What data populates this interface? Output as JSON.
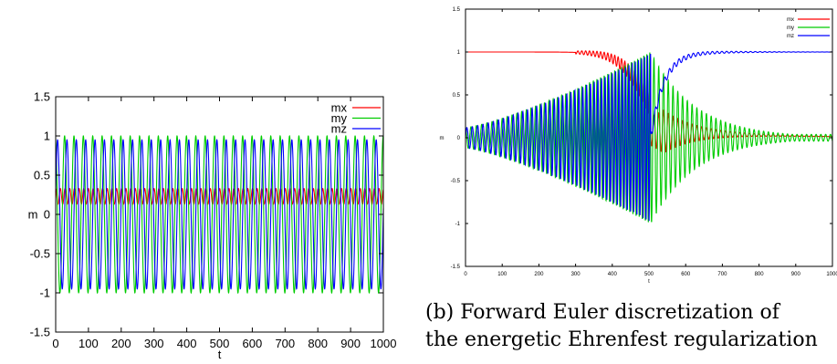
{
  "chart_data": [
    {
      "type": "line",
      "title": "",
      "xlabel": "t",
      "ylabel": "m",
      "xlim": [
        0,
        1000
      ],
      "ylim": [
        -1.5,
        1.5
      ],
      "xticks": [
        "0",
        "100",
        "200",
        "300",
        "400",
        "500",
        "600",
        "700",
        "800",
        "900",
        "1000"
      ],
      "yticks": [
        "-1.5",
        "-1",
        "-0.5",
        "0",
        "0.5",
        "1",
        "1.5"
      ],
      "legend_position": "top-right",
      "grid": false,
      "series": [
        {
          "name": "mx",
          "color": "#ff0000",
          "description_values": {
            "min": 0.13,
            "max": 0.33,
            "oscillation_period": 14.3
          }
        },
        {
          "name": "my",
          "color": "#00cc00",
          "description_values": {
            "min": -1.0,
            "max": 1.0,
            "oscillation_period": 28.6
          }
        },
        {
          "name": "mz",
          "color": "#0000ff",
          "description_values": {
            "min": -0.95,
            "max": 0.95,
            "oscillation_period": 28.6
          }
        }
      ]
    },
    {
      "type": "line",
      "title": "",
      "xlabel": "t",
      "ylabel": "m",
      "xlim": [
        0,
        1000
      ],
      "ylim": [
        -1.5,
        1.5
      ],
      "xticks": [
        "0",
        "100",
        "200",
        "300",
        "400",
        "500",
        "600",
        "700",
        "800",
        "900",
        "1000"
      ],
      "yticks": [
        "-1.5",
        "-1",
        "-0.5",
        "0",
        "0.5",
        "1",
        "1.5"
      ],
      "legend_position": "top-right",
      "grid": false,
      "series": [
        {
          "name": "mx",
          "color": "#ff0000",
          "description_values": {
            "start": 1.0,
            "end": 0.0
          }
        },
        {
          "name": "my",
          "color": "#00cc00",
          "description_values": {
            "max_amplitude": 1.0,
            "end_amplitude": 0.05
          }
        },
        {
          "name": "mz",
          "color": "#0000ff",
          "description_values": {
            "start": 0.0,
            "end": 1.0
          }
        }
      ]
    }
  ],
  "caption": {
    "line1": "(b) Forward Euler discretization of",
    "line2": "the energetic Ehrenfest regularization"
  }
}
